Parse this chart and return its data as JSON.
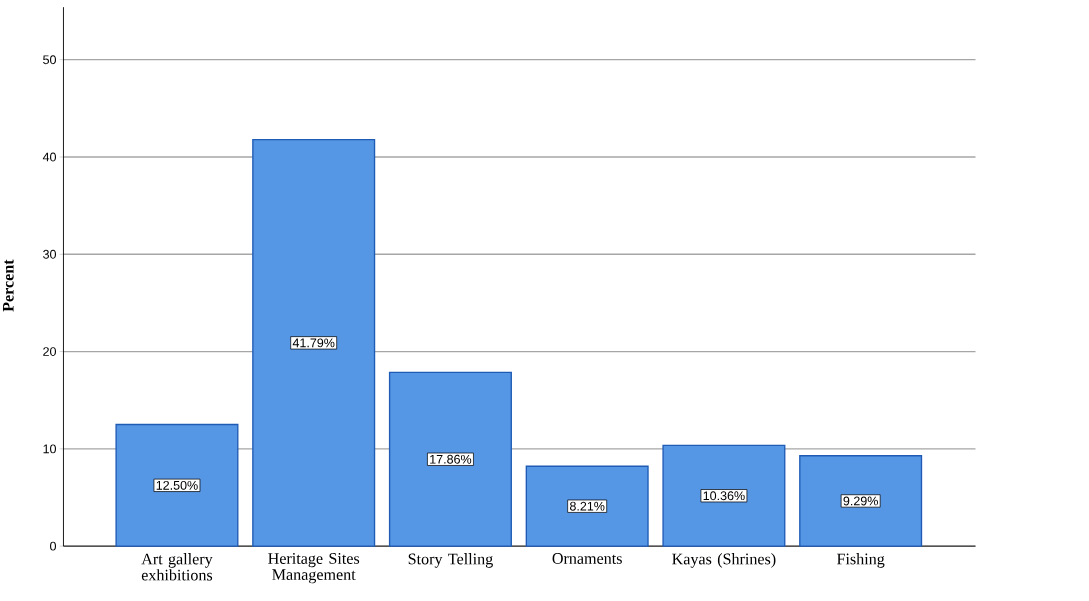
{
  "chart_data": {
    "type": "bar",
    "ylabel": "Percent",
    "categories": [
      "Art gallery exhibitions",
      "Heritage Sites Management",
      "Story Telling",
      "Ornaments",
      "Kayas (Shrines)",
      "Fishing"
    ],
    "values": [
      12.5,
      41.79,
      17.86,
      8.21,
      10.36,
      9.29
    ],
    "value_labels": [
      "12.50%",
      "41.79%",
      "17.86%",
      "8.21%",
      "10.36%",
      "9.29%"
    ],
    "color": "#5596e5",
    "ylim": [
      0,
      55.4
    ],
    "yticks": [
      0,
      10,
      20,
      30,
      40,
      50
    ],
    "grid": "y"
  }
}
